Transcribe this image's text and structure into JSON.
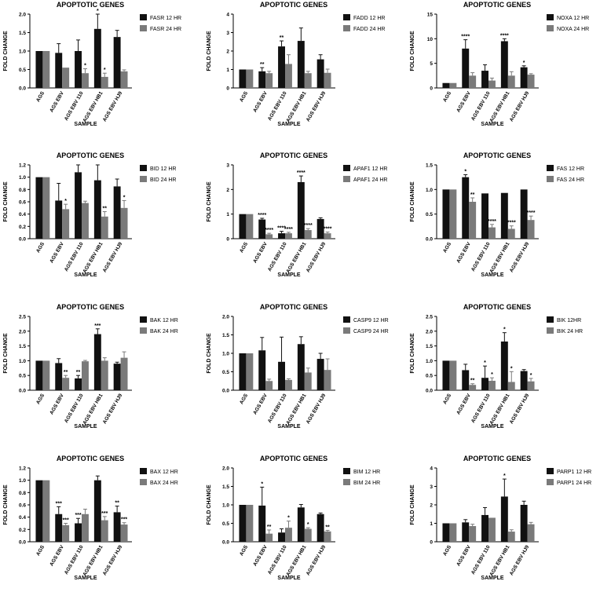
{
  "colors": {
    "h12": "#111111",
    "h24": "#7a7a7a",
    "axis": "#000000"
  },
  "chart_data": [
    {
      "type": "bar",
      "title": "APOPTOTIC GENES",
      "xlabel": "SAMPLE",
      "ylabel": "FOLD CHANGE",
      "ylim": [
        0,
        2.0
      ],
      "yticks": [
        "0.0",
        "0.5",
        "1.0",
        "1.5",
        "2.0"
      ],
      "categories": [
        "AGS",
        "AGS EBV",
        "AGS EBV 110",
        "AGS EBV HB1",
        "AGS EBV HJ9"
      ],
      "series": [
        {
          "name": "FASR 12 HR",
          "values": [
            1.0,
            0.95,
            1.0,
            1.6,
            1.38
          ],
          "errors": [
            0,
            0.25,
            0.3,
            0.4,
            0.18
          ],
          "sig": [
            "",
            "",
            "",
            "*",
            ""
          ]
        },
        {
          "name": "FASR 24 HR",
          "values": [
            1.0,
            0.55,
            0.4,
            0.3,
            0.45
          ],
          "errors": [
            0,
            0,
            0.12,
            0.1,
            0.04
          ],
          "sig": [
            "",
            "",
            "*",
            "*",
            ""
          ]
        }
      ]
    },
    {
      "type": "bar",
      "title": "APOPTOTIC GENES",
      "xlabel": "SAMPLE",
      "ylabel": "FOLD CHANGE",
      "ylim": [
        0,
        4
      ],
      "yticks": [
        "0",
        "1",
        "2",
        "3",
        "4"
      ],
      "categories": [
        "AGS",
        "AGS EBV",
        "AGS EBV 110",
        "AGS EBV HB1",
        "AGS EBV HJ9"
      ],
      "series": [
        {
          "name": "FADD 12 HR",
          "values": [
            1.0,
            0.9,
            2.25,
            2.55,
            1.55
          ],
          "errors": [
            0,
            0.2,
            0.3,
            0.7,
            0.25
          ],
          "sig": [
            "",
            "**",
            "**",
            "",
            ""
          ]
        },
        {
          "name": "FADD 24 HR",
          "values": [
            1.0,
            0.8,
            1.3,
            0.8,
            0.82
          ],
          "errors": [
            0,
            0.1,
            0.5,
            0.1,
            0.2
          ],
          "sig": [
            "",
            "",
            "",
            "",
            ""
          ]
        }
      ]
    },
    {
      "type": "bar",
      "title": "APOPTOTIC GENES",
      "xlabel": "SAMPLE",
      "ylabel": "FOLD CHANGE",
      "ylim": [
        0,
        15
      ],
      "yticks": [
        "0",
        "5",
        "10",
        "15"
      ],
      "categories": [
        "AGS",
        "AGS EBV",
        "AGS EBV 110",
        "AGS EBV HB1",
        "AGS EBV HJ9"
      ],
      "series": [
        {
          "name": "NOXA 12 HR",
          "values": [
            1.0,
            8.0,
            3.5,
            9.5,
            4.2
          ],
          "errors": [
            0,
            1.8,
            1.2,
            0.5,
            0.3
          ],
          "sig": [
            "",
            "****",
            "",
            "****",
            "*"
          ]
        },
        {
          "name": "NOXA 24 HR",
          "values": [
            1.0,
            2.5,
            1.5,
            2.5,
            2.7
          ],
          "errors": [
            0,
            0.6,
            0.5,
            0.8,
            0.2
          ],
          "sig": [
            "",
            "",
            "",
            "",
            ""
          ]
        }
      ]
    },
    {
      "type": "bar",
      "title": "APOPTOTIC GENES",
      "xlabel": "SAMPLE",
      "ylabel": "FOLD CHANGE",
      "ylim": [
        0,
        1.2
      ],
      "yticks": [
        "0.0",
        "0.2",
        "0.4",
        "0.6",
        "0.8",
        "1.0",
        "1.2"
      ],
      "categories": [
        "AGS",
        "AGS EBV",
        "AGS EBV 110",
        "AGS EBV HB1",
        "AGS EBV HJ9"
      ],
      "series": [
        {
          "name": "BID 12 HR",
          "values": [
            1.0,
            0.62,
            1.08,
            0.95,
            0.85
          ],
          "errors": [
            0,
            0.28,
            0.22,
            0.25,
            0.12
          ],
          "sig": [
            "",
            "",
            "",
            "",
            ""
          ]
        },
        {
          "name": "BID 24 HR",
          "values": [
            1.0,
            0.48,
            0.58,
            0.36,
            0.5
          ],
          "errors": [
            0,
            0.08,
            0.03,
            0.08,
            0.12
          ],
          "sig": [
            "",
            "*",
            "",
            "**",
            "*"
          ]
        }
      ]
    },
    {
      "type": "bar",
      "title": "APOPTOTIC GENES",
      "xlabel": "SAMPLE",
      "ylabel": "FOLD CHANGE",
      "ylim": [
        0,
        3
      ],
      "yticks": [
        "0",
        "1",
        "2",
        "3"
      ],
      "categories": [
        "AGS",
        "AGS EBV",
        "AGS EBV 110",
        "AGS EBV HB1",
        "AGS EBV HJ9"
      ],
      "series": [
        {
          "name": "APAF1 12 HR",
          "values": [
            1.0,
            0.78,
            0.22,
            2.3,
            0.8
          ],
          "errors": [
            0,
            0.05,
            0.08,
            0.25,
            0.05
          ],
          "sig": [
            "",
            "****",
            "****",
            "****",
            ""
          ]
        },
        {
          "name": "APAF1 24 HR",
          "values": [
            1.0,
            0.18,
            0.22,
            0.35,
            0.22
          ],
          "errors": [
            0,
            0.04,
            0.04,
            0.06,
            0.05
          ],
          "sig": [
            "",
            "****",
            "****",
            "****",
            "****"
          ]
        }
      ]
    },
    {
      "type": "bar",
      "title": "APOPTOTIC GENES",
      "xlabel": "SAMPLE",
      "ylabel": "FOLD CHANGE",
      "ylim": [
        0,
        1.5
      ],
      "yticks": [
        "0.0",
        "0.5",
        "1.0",
        "1.5"
      ],
      "categories": [
        "AGS",
        "AGS EBV",
        "AGS EBV 110",
        "AGS EBV HB1",
        "AGS EBV HJ9"
      ],
      "series": [
        {
          "name": "FAS 12 HR",
          "values": [
            1.0,
            1.25,
            0.92,
            0.93,
            1.0
          ],
          "errors": [
            0,
            0.05,
            0,
            0,
            0
          ],
          "sig": [
            "",
            "*",
            "",
            "",
            ""
          ]
        },
        {
          "name": "FAS 24 HR",
          "values": [
            1.0,
            0.75,
            0.23,
            0.2,
            0.38
          ],
          "errors": [
            0,
            0.08,
            0.06,
            0.06,
            0.08
          ],
          "sig": [
            "",
            "**",
            "****",
            "****",
            "****"
          ]
        }
      ]
    },
    {
      "type": "bar",
      "title": "APOPTOTIC GENES",
      "xlabel": "SAMPLE",
      "ylabel": "FOLD CHANGE",
      "ylim": [
        0,
        2.5
      ],
      "yticks": [
        "0.0",
        "0.5",
        "1.0",
        "1.5",
        "2.0",
        "2.5"
      ],
      "categories": [
        "AGS",
        "AGS EBV",
        "AGS EBV 110",
        "AGS EBV HB1",
        "AGS EBV HJ9"
      ],
      "series": [
        {
          "name": "BAK 12 HR",
          "values": [
            1.0,
            0.92,
            0.4,
            1.9,
            0.9
          ],
          "errors": [
            0,
            0.15,
            0.1,
            0.18,
            0.05
          ],
          "sig": [
            "",
            "",
            "**",
            "***",
            ""
          ]
        },
        {
          "name": "BAK 24 HR",
          "values": [
            1.0,
            0.42,
            0.98,
            1.0,
            1.1
          ],
          "errors": [
            0,
            0.08,
            0.03,
            0.1,
            0.2
          ],
          "sig": [
            "",
            "**",
            "",
            "",
            ""
          ]
        }
      ]
    },
    {
      "type": "bar",
      "title": "APOPTOTIC GENES",
      "xlabel": "SAMPLE",
      "ylabel": "FOLD CHANGE",
      "ylim": [
        0,
        2.0
      ],
      "yticks": [
        "0.0",
        "0.5",
        "1.0",
        "1.5",
        "2.0"
      ],
      "categories": [
        "AGS",
        "AGS EBV",
        "AGS EBV 110",
        "AGS EBV HB1",
        "AGS EBV HJ9"
      ],
      "series": [
        {
          "name": "CASP9 12 HR",
          "values": [
            1.0,
            1.08,
            0.77,
            1.25,
            0.85
          ],
          "errors": [
            0,
            0.35,
            0.67,
            0.2,
            0.15
          ],
          "sig": [
            "",
            "",
            "",
            "",
            ""
          ]
        },
        {
          "name": "CASP9 24 HR",
          "values": [
            1.0,
            0.25,
            0.28,
            0.48,
            0.55
          ],
          "errors": [
            0,
            0.05,
            0.03,
            0.12,
            0.3
          ],
          "sig": [
            "",
            "",
            "",
            "",
            ""
          ]
        }
      ]
    },
    {
      "type": "bar",
      "title": "APOPTOTIC GENES",
      "xlabel": "SAMPLE",
      "ylabel": "FOLD CHANGE",
      "ylim": [
        0,
        2.5
      ],
      "yticks": [
        "0.0",
        "0.5",
        "1.0",
        "1.5",
        "2.0",
        "2.5"
      ],
      "categories": [
        "AGS",
        "AGS EBV",
        "AGS EBV 110",
        "AGS EBV HB1",
        "AGS EBV HJ9"
      ],
      "series": [
        {
          "name": "BIK 12HR",
          "values": [
            1.0,
            0.68,
            0.42,
            1.65,
            0.65
          ],
          "errors": [
            0,
            0.2,
            0.4,
            0.3,
            0.05
          ],
          "sig": [
            "",
            "",
            "*",
            "*",
            ""
          ]
        },
        {
          "name": "BIK 24 HR",
          "values": [
            1.0,
            0.18,
            0.32,
            0.28,
            0.3
          ],
          "errors": [
            0,
            0.04,
            0.1,
            0.35,
            0.1
          ],
          "sig": [
            "",
            "**",
            "*",
            "*",
            "*"
          ]
        }
      ]
    },
    {
      "type": "bar",
      "title": "APOPTOTIC GENES",
      "xlabel": "SAMPLE",
      "ylabel": "FOLD CHANGE",
      "ylim": [
        0,
        1.2
      ],
      "yticks": [
        "0.0",
        "0.2",
        "0.4",
        "0.6",
        "0.8",
        "1.0",
        "1.2"
      ],
      "categories": [
        "AGS",
        "AGS EBV",
        "AGS EBV 110",
        "AGS EBV HB1",
        "AGS EBV HJ9"
      ],
      "series": [
        {
          "name": "BAX 12 HR",
          "values": [
            1.0,
            0.45,
            0.3,
            1.0,
            0.48
          ],
          "errors": [
            0,
            0.12,
            0.08,
            0.07,
            0.1
          ],
          "sig": [
            "",
            "***",
            "***",
            "",
            "**"
          ]
        },
        {
          "name": "BAX 24 HR",
          "values": [
            1.0,
            0.27,
            0.45,
            0.35,
            0.28
          ],
          "errors": [
            0,
            0.03,
            0.08,
            0.06,
            0.03
          ],
          "sig": [
            "",
            "***",
            "",
            "***",
            "***"
          ]
        }
      ]
    },
    {
      "type": "bar",
      "title": "APOPTOTIC GENES",
      "xlabel": "SAMPLE",
      "ylabel": "FOLD CHANGE",
      "ylim": [
        0,
        2.0
      ],
      "yticks": [
        "0.0",
        "0.5",
        "1.0",
        "1.5",
        "2.0"
      ],
      "categories": [
        "AGS",
        "AGS EBV",
        "AGS EBV 110",
        "AGS EBV HB1",
        "AGS EBV HJ9"
      ],
      "series": [
        {
          "name": "BIM 12 HR",
          "values": [
            1.0,
            0.98,
            0.25,
            0.93,
            0.75
          ],
          "errors": [
            0,
            0.5,
            0.1,
            0.08,
            0.03
          ],
          "sig": [
            "",
            "*",
            "",
            "",
            ""
          ]
        },
        {
          "name": "BIM 24 HR",
          "values": [
            1.0,
            0.22,
            0.38,
            0.35,
            0.28
          ],
          "errors": [
            0,
            0.1,
            0.18,
            0.03,
            0.03
          ],
          "sig": [
            "",
            "**",
            "*",
            "*",
            "**"
          ]
        }
      ]
    },
    {
      "type": "bar",
      "title": "APOPTOTIC GENES",
      "xlabel": "SAMPLE",
      "ylabel": "FOLD CHANGE",
      "ylim": [
        0,
        4
      ],
      "yticks": [
        "0",
        "1",
        "2",
        "3",
        "4"
      ],
      "categories": [
        "AGS",
        "AGS EBV",
        "AGS EBV 110",
        "AGS EBV HB1",
        "AGS EBV HJ9"
      ],
      "series": [
        {
          "name": "PARP1 12 HR",
          "values": [
            1.0,
            1.05,
            1.45,
            2.45,
            2.0
          ],
          "errors": [
            0,
            0.15,
            0.4,
            0.95,
            0.2
          ],
          "sig": [
            "",
            "",
            "",
            "*",
            ""
          ]
        },
        {
          "name": "PARP1 24 HR",
          "values": [
            1.0,
            0.85,
            1.3,
            0.55,
            0.95
          ],
          "errors": [
            0,
            0.1,
            0,
            0.1,
            0.1
          ],
          "sig": [
            "",
            "",
            "",
            "",
            ""
          ]
        }
      ]
    }
  ]
}
